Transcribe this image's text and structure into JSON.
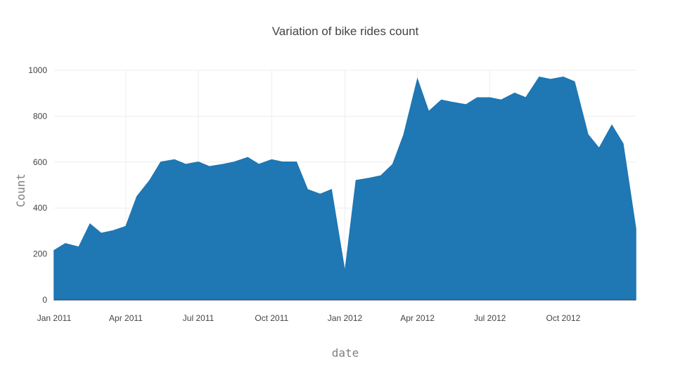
{
  "chart_data": {
    "type": "line",
    "title": "Variation of bike rides count",
    "xlabel": "date",
    "ylabel": "Count",
    "xlim": [
      "2011-01-01",
      "2012-12-31"
    ],
    "ylim": [
      0,
      1000
    ],
    "grid": true,
    "x_ticks": [
      "Jan 2011",
      "Apr 2011",
      "Jul 2011",
      "Oct 2011",
      "Jan 2012",
      "Apr 2012",
      "Jul 2012",
      "Oct 2012"
    ],
    "y_ticks": [
      "0",
      "200",
      "400",
      "600",
      "800",
      "1000"
    ],
    "series_color": "#1f77b4",
    "series": [
      {
        "x": [
          "2011-01-01",
          "2011-01-15",
          "2011-02-01",
          "2011-02-15",
          "2011-03-01",
          "2011-03-15",
          "2011-04-01",
          "2011-04-15",
          "2011-05-01",
          "2011-05-15",
          "2011-06-01",
          "2011-06-15",
          "2011-07-01",
          "2011-07-15",
          "2011-08-01",
          "2011-08-15",
          "2011-09-01",
          "2011-09-15",
          "2011-10-01",
          "2011-10-15",
          "2011-11-01",
          "2011-11-15",
          "2011-12-01",
          "2011-12-15",
          "2012-01-01",
          "2012-01-15",
          "2012-02-01",
          "2012-02-15",
          "2012-03-01",
          "2012-03-15",
          "2012-04-01",
          "2012-04-15",
          "2012-05-01",
          "2012-05-15",
          "2012-06-01",
          "2012-06-15",
          "2012-07-01",
          "2012-07-15",
          "2012-08-01",
          "2012-08-15",
          "2012-09-01",
          "2012-09-15",
          "2012-10-01",
          "2012-10-15",
          "2012-11-01",
          "2012-11-15",
          "2012-12-01",
          "2012-12-15",
          "2012-12-31"
        ],
        "y": [
          215,
          245,
          230,
          330,
          290,
          300,
          320,
          450,
          520,
          600,
          610,
          590,
          600,
          580,
          590,
          600,
          620,
          590,
          610,
          600,
          600,
          480,
          460,
          480,
          120,
          520,
          530,
          540,
          590,
          720,
          960,
          820,
          870,
          860,
          850,
          880,
          880,
          870,
          900,
          880,
          970,
          960,
          970,
          950,
          720,
          660,
          760,
          680,
          310
        ]
      }
    ]
  }
}
